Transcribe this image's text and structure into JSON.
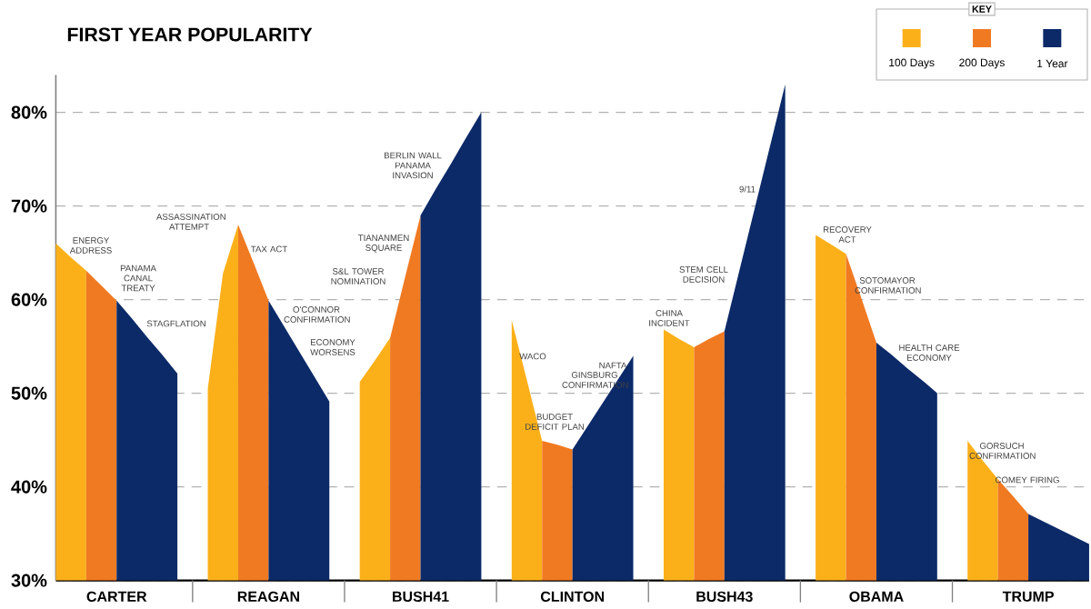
{
  "chart_data": {
    "type": "area",
    "title": "FIRST YEAR POPULARITY",
    "legend_title": "KEY",
    "legend": "top right",
    "grid": "y",
    "categories": [
      null,
      null,
      null,
      null,
      "CARTER",
      null,
      null,
      null,
      null,
      null,
      null,
      null,
      null,
      null,
      "REAGAN",
      null,
      null,
      null,
      null,
      null,
      null,
      null,
      null,
      null,
      "BUSH41",
      null,
      null,
      null,
      null,
      null,
      null,
      null,
      null,
      null,
      "CLINTON",
      null,
      null,
      null,
      null,
      null,
      null,
      null,
      null,
      null,
      "BUSH43",
      null,
      null,
      null,
      null,
      null,
      null,
      null,
      null,
      null,
      "OBAMA",
      null,
      null,
      null,
      null,
      null,
      null,
      null,
      null,
      null,
      "TRUMP",
      null,
      null,
      null,
      null
    ],
    "ylim": [
      30,
      84
    ],
    "yticks": [
      {
        "value": 30,
        "label": "30%"
      },
      {
        "value": 40,
        "label": "40%"
      },
      {
        "value": 50,
        "label": "50%"
      },
      {
        "value": 60,
        "label": "60%"
      },
      {
        "value": 70,
        "label": "70%"
      },
      {
        "value": 80,
        "label": "80%"
      }
    ],
    "series": [
      {
        "name": "100 Days",
        "color": "#fbb01a",
        "values": [
          66.0,
          64.5,
          63.1,
          null,
          null,
          null,
          null,
          null,
          null,
          null,
          50.5,
          62.8,
          68.0,
          null,
          null,
          null,
          null,
          null,
          null,
          null,
          51.2,
          53.5,
          55.9,
          null,
          null,
          null,
          null,
          null,
          null,
          null,
          57.8,
          51.4,
          44.9,
          null,
          null,
          null,
          null,
          null,
          null,
          null,
          56.8,
          55.8,
          54.9,
          null,
          null,
          null,
          null,
          null,
          null,
          null,
          66.9,
          65.9,
          64.9,
          null,
          null,
          null,
          null,
          null,
          null,
          null,
          44.9,
          42.8,
          40.8,
          null,
          null,
          null,
          null,
          null,
          null
        ]
      },
      {
        "name": "200 Days",
        "color": "#f07a22",
        "values": [
          null,
          null,
          63.1,
          61.5,
          59.9,
          null,
          null,
          null,
          null,
          null,
          null,
          null,
          68.0,
          64.0,
          59.9,
          null,
          null,
          null,
          null,
          null,
          null,
          null,
          55.9,
          62.5,
          69.0,
          null,
          null,
          null,
          null,
          null,
          null,
          null,
          44.9,
          44.5,
          44.0,
          null,
          null,
          null,
          null,
          null,
          null,
          null,
          54.9,
          55.8,
          56.6,
          null,
          null,
          null,
          null,
          null,
          null,
          null,
          64.9,
          60.2,
          55.4,
          null,
          null,
          null,
          null,
          null,
          null,
          null,
          40.8,
          39.0,
          37.1,
          null,
          null,
          null,
          null
        ]
      },
      {
        "name": "1 Year",
        "color": "#0c2a68",
        "values": [
          null,
          null,
          null,
          null,
          59.9,
          58.0,
          56.0,
          54.1,
          52.1,
          null,
          null,
          null,
          null,
          null,
          59.9,
          57.2,
          54.5,
          51.8,
          49.1,
          null,
          null,
          null,
          null,
          null,
          69.0,
          71.8,
          74.5,
          77.3,
          80.0,
          null,
          null,
          null,
          null,
          null,
          44.0,
          46.5,
          49.0,
          51.5,
          54.0,
          null,
          null,
          null,
          null,
          null,
          56.6,
          63.2,
          69.8,
          76.4,
          83.0,
          null,
          null,
          null,
          null,
          null,
          55.4,
          54.1,
          52.7,
          51.4,
          50.0,
          null,
          null,
          null,
          null,
          null,
          37.1,
          36.3,
          35.5,
          34.7,
          33.9
        ]
      }
    ],
    "annotations": [
      "ENERGY ADDRESS",
      "PANAMA CANAL TREATY",
      "STAGFLATION",
      "ASSASSINATION ATTEMPT",
      "TAX ACT",
      "O'CONNOR CONFIRMATION",
      "ECONOMY WORSENS",
      "S&L TOWER NOMINATION",
      "TIANANMEN SQUARE",
      "BERLIN WALL PANAMA INVASION",
      "WACO",
      "BUDGET DEFICIT PLAN",
      "GINSBURG CONFIRMATION",
      "NAFTA",
      "CHINA INCIDENT",
      "STEM CELL DECISION",
      "9/11",
      "RECOVERY ACT",
      "SOTOMAYOR CONFIRMATION",
      "HEALTH CARE ECONOMY",
      "GORSUCH CONFIRMATION",
      "COMEY FIRING"
    ]
  }
}
